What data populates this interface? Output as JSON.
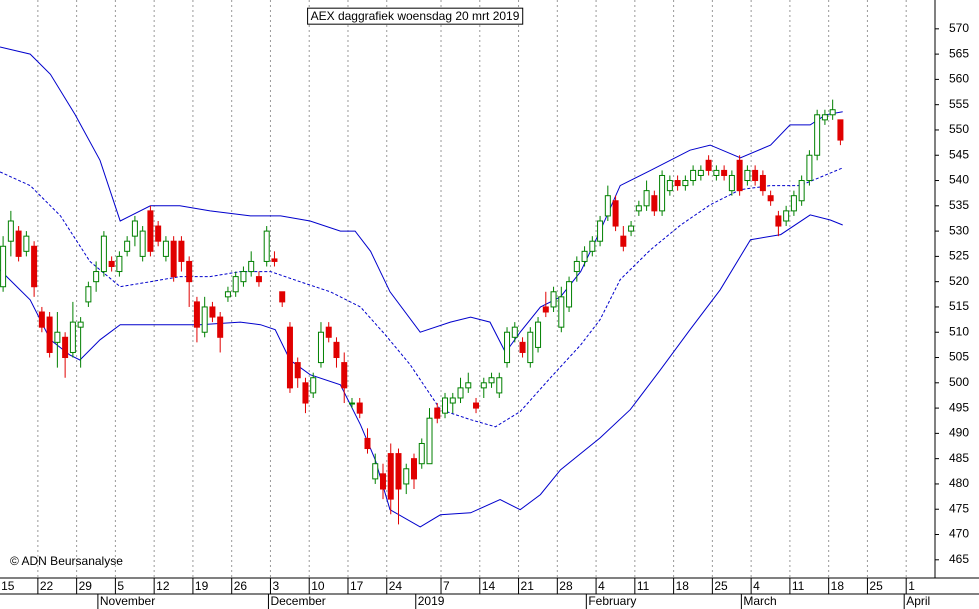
{
  "chart_data": {
    "type": "candlestick",
    "title": "AEX daggrafiek woensdag 20 mrt 2019",
    "credit": "© ADN Beursanalyse",
    "up_color": "#008000",
    "down_color": "#e00000",
    "band_color": "#0000cc",
    "ylim": [
      461.4,
      575.7
    ],
    "yticks": [
      465,
      470,
      475,
      480,
      485,
      490,
      495,
      500,
      505,
      510,
      515,
      520,
      525,
      530,
      535,
      540,
      545,
      550,
      555,
      560,
      565,
      570
    ],
    "xlim": [
      -0.4,
      120.2
    ],
    "xticks": [
      {
        "value": 0,
        "label": "15"
      },
      {
        "value": 5,
        "label": "22"
      },
      {
        "value": 10,
        "label": "29"
      },
      {
        "value": 15,
        "label": "5"
      },
      {
        "value": 20,
        "label": "12"
      },
      {
        "value": 25,
        "label": "19"
      },
      {
        "value": 30,
        "label": "26"
      },
      {
        "value": 35,
        "label": "3"
      },
      {
        "value": 40,
        "label": "10"
      },
      {
        "value": 45,
        "label": "17"
      },
      {
        "value": 50,
        "label": "24"
      },
      {
        "value": 57,
        "label": "7"
      },
      {
        "value": 62,
        "label": "14"
      },
      {
        "value": 67,
        "label": "21"
      },
      {
        "value": 72,
        "label": "28"
      },
      {
        "value": 77,
        "label": "4"
      },
      {
        "value": 82,
        "label": "11"
      },
      {
        "value": 87,
        "label": "18"
      },
      {
        "value": 92,
        "label": "25"
      },
      {
        "value": 97,
        "label": "4"
      },
      {
        "value": 102,
        "label": "11"
      },
      {
        "value": 107,
        "label": "18"
      },
      {
        "value": 112,
        "label": "25"
      },
      {
        "value": 117,
        "label": "1"
      }
    ],
    "months": [
      {
        "value": 13,
        "label": "November"
      },
      {
        "value": 35,
        "label": "December"
      },
      {
        "value": 54,
        "label": "2019"
      },
      {
        "value": 76,
        "label": "February"
      },
      {
        "value": 96,
        "label": "March"
      },
      {
        "value": 117,
        "label": "April"
      }
    ],
    "grid": true,
    "open": [
      519,
      528,
      530,
      526,
      527,
      514,
      513,
      508,
      509,
      506,
      511,
      516,
      520,
      522,
      524,
      522,
      526,
      529,
      525,
      534,
      531,
      525,
      528,
      528,
      524,
      516,
      510,
      515,
      513,
      517,
      518,
      520,
      522,
      521,
      524,
      524.5,
      518,
      511,
      504,
      500,
      498,
      504,
      511,
      508,
      504,
      496,
      496,
      489,
      481,
      482,
      486,
      486,
      480,
      485,
      484,
      484,
      495,
      494,
      496,
      497,
      499,
      496,
      499,
      500,
      498,
      504,
      509,
      508,
      504,
      507,
      515,
      515,
      511,
      515,
      522,
      524,
      526,
      528,
      533,
      536,
      529,
      530,
      534,
      535,
      537,
      534,
      538,
      540,
      539,
      540,
      541,
      544,
      541,
      542,
      538,
      544,
      540,
      542,
      541,
      537,
      533,
      532,
      534,
      536,
      540,
      545,
      552,
      553,
      552
    ],
    "high": [
      529,
      534,
      531,
      530,
      528,
      515,
      514,
      514,
      510,
      516,
      513,
      520,
      524,
      530,
      525,
      526,
      529,
      533,
      531,
      535,
      532,
      529,
      529,
      529,
      525,
      517,
      517,
      516,
      514,
      519,
      522,
      523,
      526,
      522,
      531,
      526,
      518,
      512,
      505,
      501,
      502,
      512,
      512,
      509,
      506,
      497,
      497,
      491,
      486,
      484,
      488,
      487,
      484,
      486,
      489,
      495,
      496,
      498,
      498,
      501,
      502,
      497,
      501,
      502,
      502,
      511,
      512,
      509,
      511,
      513,
      518,
      519,
      519,
      521,
      525,
      527,
      529,
      533,
      539,
      537,
      531,
      532,
      536,
      540,
      538,
      542,
      541,
      541,
      541,
      543,
      543,
      545,
      543,
      543,
      542,
      545,
      543,
      543,
      542,
      538,
      534,
      535,
      538,
      541,
      546,
      554,
      554,
      556,
      552
    ],
    "low": [
      518,
      525,
      524,
      525,
      517,
      510,
      505,
      503,
      501,
      505,
      503,
      515,
      518,
      521,
      522,
      521,
      525,
      527,
      524,
      525,
      527,
      524,
      520,
      522,
      515,
      508,
      509,
      512,
      506,
      516,
      517,
      519,
      521,
      519,
      523,
      523,
      515,
      498,
      499,
      494,
      497,
      503,
      508,
      503,
      496,
      495,
      493,
      486,
      480,
      477,
      474,
      472,
      478,
      479,
      483,
      484,
      492,
      493,
      494,
      496,
      498,
      494,
      497,
      499,
      497,
      503,
      508,
      505,
      503,
      506,
      513,
      514,
      510,
      514,
      520,
      523,
      525,
      527,
      532,
      530,
      526,
      529,
      533,
      534,
      533,
      533,
      537,
      538,
      538,
      539,
      540,
      541,
      540,
      540,
      537,
      537,
      539,
      539,
      537,
      535,
      529,
      531,
      533,
      535,
      539,
      544,
      551,
      552,
      547
    ],
    "close": [
      527,
      532,
      525,
      529,
      519,
      511,
      506,
      510,
      505,
      512,
      512,
      519,
      522,
      529,
      523,
      525,
      528,
      532,
      530,
      526,
      528,
      528,
      521,
      524,
      520,
      511,
      515,
      513,
      509,
      518,
      521,
      522,
      524,
      520,
      530,
      524,
      516,
      499,
      501,
      496,
      501,
      510,
      509,
      505,
      499,
      496,
      494,
      487,
      484,
      479,
      477,
      479,
      483,
      481,
      488,
      493,
      493,
      497,
      497,
      499,
      500,
      495,
      500,
      501,
      501,
      510,
      511,
      506,
      510,
      512,
      514,
      518,
      517,
      520,
      524,
      526,
      528,
      532,
      537,
      531,
      527,
      531,
      535,
      538,
      534,
      541,
      540,
      539,
      540,
      542,
      542,
      542,
      542,
      541,
      541,
      538,
      542,
      540,
      538,
      536,
      531,
      534,
      537,
      540,
      545,
      553,
      553,
      554,
      548
    ],
    "bands": {
      "upper": {
        "x": [
          -0.4,
          3.5,
          6.1,
          9.3,
          12.5,
          15.1,
          19,
          22.8,
          26.7,
          31.9,
          35.8,
          39.6,
          43.5,
          45.4,
          47.4,
          49.9,
          53.8,
          57.7,
          60.3,
          62.8,
          64.8,
          66.7,
          69.3,
          71.9,
          74.5,
          77,
          79.6,
          83.5,
          88.6,
          91.2,
          95.1,
          99,
          101.5,
          104.1,
          106.1,
          108.3
        ],
        "values": [
          566.4,
          565,
          561,
          553,
          544,
          532,
          535,
          535,
          534,
          533,
          533,
          532,
          530,
          530,
          526,
          518,
          510,
          512,
          513,
          512,
          506,
          510,
          515,
          517,
          522,
          530,
          539,
          542,
          546,
          547,
          544.5,
          547,
          551,
          551,
          553,
          553.6
        ]
      },
      "middle": {
        "x": [
          -0.4,
          3.5,
          7.4,
          11.2,
          15.1,
          19,
          22.8,
          26.7,
          30.6,
          34.5,
          38.3,
          42.2,
          46.1,
          49.3,
          52.5,
          56.4,
          60.3,
          63.5,
          66.7,
          70.6,
          74.5,
          77,
          79.6,
          83.5,
          87.4,
          91.2,
          95.1,
          99,
          102.8,
          108.3
        ],
        "values": [
          541.7,
          539,
          533,
          524,
          519,
          520,
          521,
          521,
          522,
          522,
          520,
          518,
          515,
          509.5,
          503.6,
          494.7,
          492.7,
          491.3,
          494.3,
          501,
          507.5,
          512.5,
          520.4,
          526.3,
          531.2,
          535.2,
          538.2,
          539,
          539,
          542.5
        ]
      },
      "lower": {
        "x": [
          -0.4,
          3.5,
          6.1,
          8.6,
          9.9,
          12.5,
          15.1,
          19,
          25.4,
          30.6,
          33.2,
          35.1,
          37,
          39.6,
          43.5,
          46.1,
          48,
          49.9,
          53.8,
          56.4,
          60.3,
          64.1,
          66.7,
          69.3,
          71.9,
          77,
          80.9,
          84.8,
          88.6,
          92.5,
          96.4,
          100.3,
          104.1,
          106.7,
          108.3
        ],
        "values": [
          522.3,
          516.4,
          508.5,
          505.5,
          504.5,
          508.5,
          511.5,
          511.5,
          511.5,
          512,
          511.5,
          510.5,
          504.5,
          501.6,
          499.6,
          491.7,
          484.8,
          474.9,
          471.5,
          473.9,
          474.3,
          476.9,
          474.9,
          477.9,
          482.8,
          489.1,
          494.7,
          502.6,
          510.5,
          518.4,
          528.3,
          529.3,
          533.2,
          532.2,
          531.2
        ]
      }
    }
  }
}
